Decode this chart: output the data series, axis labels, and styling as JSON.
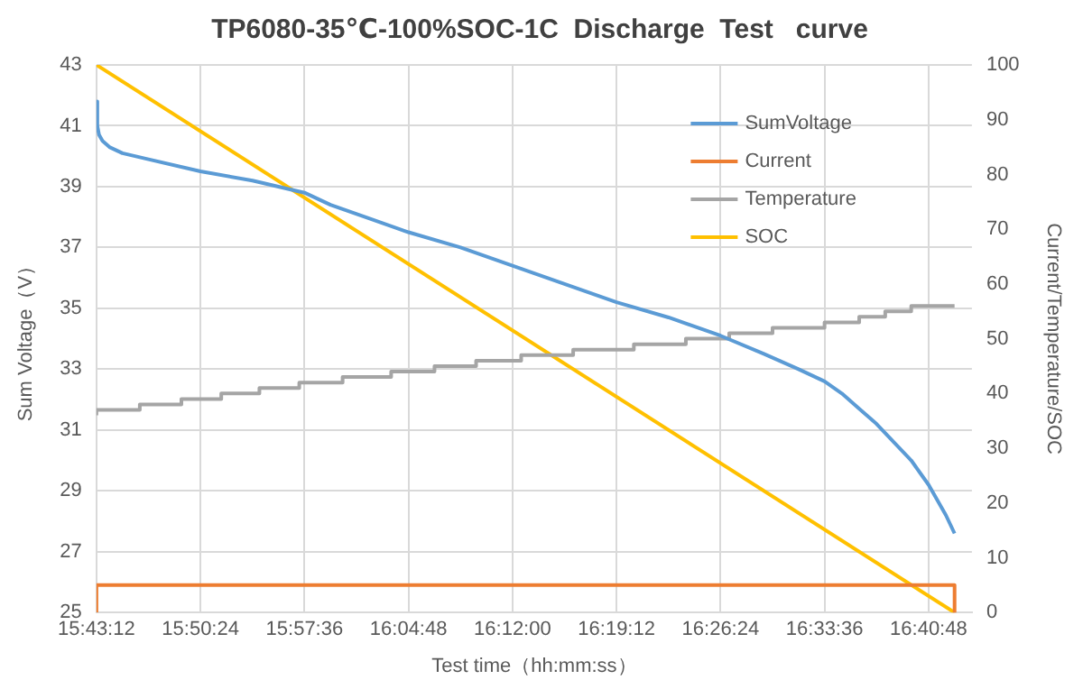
{
  "chart_data": {
    "type": "line",
    "title": "TP6080-35℃-100%SOC-1C  Discharge  Test   curve",
    "xlabel": "Test time（hh:mm:ss）",
    "ylabel": "Sum Voltage（V）",
    "y2label": "Current/Temperature/SOC",
    "xlim": [
      15.72,
      16.73
    ],
    "xticks": [
      {
        "value": 15.72,
        "label": "15:43:12"
      },
      {
        "value": 15.84,
        "label": "15:50:24"
      },
      {
        "value": 15.96,
        "label": "15:57:36"
      },
      {
        "value": 16.08,
        "label": "16:04:48"
      },
      {
        "value": 16.2,
        "label": "16:12:00"
      },
      {
        "value": 16.32,
        "label": "16:19:12"
      },
      {
        "value": 16.44,
        "label": "16:26:24"
      },
      {
        "value": 16.56,
        "label": "16:33:36"
      },
      {
        "value": 16.68,
        "label": "16:40:48"
      }
    ],
    "ylim": [
      25,
      43
    ],
    "yticks": [
      25,
      27,
      29,
      31,
      33,
      35,
      37,
      39,
      41,
      43
    ],
    "y2lim": [
      0,
      100
    ],
    "y2ticks": [
      0,
      10,
      20,
      30,
      40,
      50,
      60,
      70,
      80,
      90,
      100
    ],
    "grid": true,
    "legend": "top right",
    "marker": "none",
    "series": [
      {
        "name": "SumVoltage",
        "color": "#5b9bd5",
        "x": [
          15.72,
          15.721,
          15.723,
          15.727,
          15.735,
          15.75,
          15.78,
          15.84,
          15.9,
          15.93,
          15.96,
          15.99,
          16.03,
          16.08,
          16.14,
          16.2,
          16.26,
          16.32,
          16.38,
          16.44,
          16.49,
          16.53,
          16.56,
          16.58,
          16.6,
          16.62,
          16.64,
          16.66,
          16.68,
          16.7,
          16.71
        ],
        "values": [
          41.8,
          41.0,
          40.7,
          40.5,
          40.3,
          40.1,
          39.9,
          39.5,
          39.2,
          39.0,
          38.8,
          38.4,
          38.0,
          37.5,
          37.0,
          36.4,
          35.8,
          35.2,
          34.7,
          34.1,
          33.5,
          33.0,
          32.6,
          32.2,
          31.7,
          31.2,
          30.6,
          30.0,
          29.2,
          28.2,
          27.6
        ]
      },
      {
        "name": "Current",
        "color": "#ed7d31",
        "axis": "y2",
        "x": [
          15.72,
          15.72,
          16.71,
          16.71
        ],
        "values": [
          0,
          5,
          5,
          0
        ]
      },
      {
        "name": "Temperature",
        "color": "#a5a5a5",
        "type": "step",
        "axis": "y2",
        "x": [
          15.72,
          15.77,
          15.818,
          15.864,
          15.908,
          15.954,
          16.004,
          16.06,
          16.11,
          16.158,
          16.21,
          16.27,
          16.34,
          16.4,
          16.45,
          16.5,
          16.56,
          16.6,
          16.63,
          16.66,
          16.68,
          16.71
        ],
        "values": [
          36,
          37,
          38,
          39,
          40,
          41,
          42,
          43,
          44,
          45,
          46,
          47,
          48,
          49,
          50,
          51,
          52,
          53,
          54,
          55,
          56,
          56
        ]
      },
      {
        "name": "SOC",
        "color": "#ffc000",
        "axis": "y2",
        "x": [
          15.72,
          16.71
        ],
        "values": [
          100,
          0
        ]
      }
    ]
  }
}
